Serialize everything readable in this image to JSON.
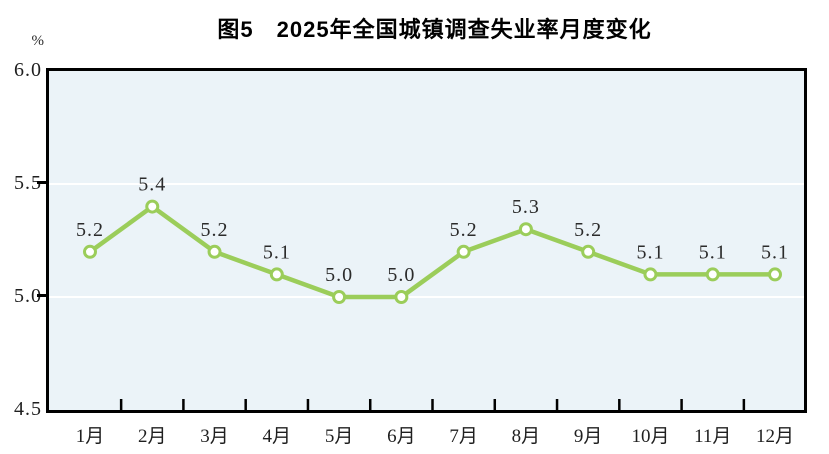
{
  "figure": {
    "title": "图5　2025年全国城镇调查失业率月度变化",
    "unit_label": "%"
  },
  "colors": {
    "line": "#9bcd5a",
    "marker_fill": "#ffffff",
    "marker_stroke": "#9bcd5a",
    "plot_background": "#ebf3f8",
    "gridline": "#ffffff",
    "axis": "#000000",
    "label_text": "#2b2b2b"
  },
  "chart_data": {
    "type": "line",
    "title": "图5　2025年全国城镇调查失业率月度变化",
    "categories": [
      "1月",
      "2月",
      "3月",
      "4月",
      "5月",
      "6月",
      "7月",
      "8月",
      "9月",
      "10月",
      "11月",
      "12月"
    ],
    "values": [
      5.2,
      5.4,
      5.2,
      5.1,
      5.0,
      5.0,
      5.2,
      5.3,
      5.2,
      5.1,
      5.1,
      5.1
    ],
    "data_labels": [
      "5.2",
      "5.4",
      "5.2",
      "5.1",
      "5.0",
      "5.0",
      "5.2",
      "5.3",
      "5.2",
      "5.1",
      "5.1",
      "5.1"
    ],
    "xlabel": "",
    "ylabel": "%",
    "ylim": [
      4.5,
      6.0
    ],
    "yticks": [
      4.5,
      5.0,
      5.5,
      6.0
    ],
    "ytick_labels": [
      "4.5",
      "5.0",
      "5.5",
      "6.0"
    ],
    "grid": true,
    "legend": false,
    "marker": "open-circle"
  }
}
